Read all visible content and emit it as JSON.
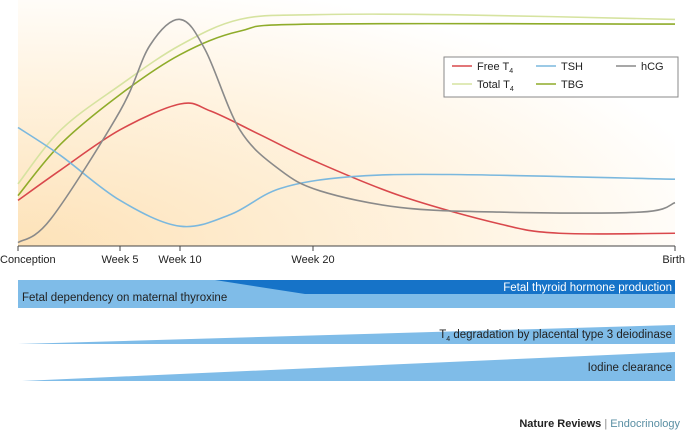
{
  "chart_data": {
    "type": "line",
    "xlabel": "",
    "ylabel": "",
    "x_ticks": [
      {
        "label": "Conception",
        "week": 0
      },
      {
        "label": "Week 5",
        "week": 5
      },
      {
        "label": "Week 10",
        "week": 10
      },
      {
        "label": "Week 20",
        "week": 20
      },
      {
        "label": "Birth",
        "week": 40
      }
    ],
    "y_scale": "relative level 0-100 (no axis printed)",
    "legend_position": "top-right",
    "series": [
      {
        "name": "Total T",
        "sub": "4",
        "color": "#d6e3a0",
        "points": [
          [
            0,
            26
          ],
          [
            2.1,
            49
          ],
          [
            5,
            68
          ],
          [
            10,
            85
          ],
          [
            14.5,
            96
          ],
          [
            20,
            98
          ],
          [
            27.6,
            98
          ],
          [
            40,
            96
          ]
        ]
      },
      {
        "name": "TBG",
        "color": "#8fac2a",
        "points": [
          [
            0,
            21
          ],
          [
            2.1,
            43
          ],
          [
            5,
            64
          ],
          [
            10,
            81
          ],
          [
            14.5,
            91
          ],
          [
            20,
            94
          ],
          [
            40,
            94
          ]
        ]
      },
      {
        "name": "Free T",
        "sub": "4",
        "color": "#d9484c",
        "points": [
          [
            0,
            19
          ],
          [
            2.1,
            32
          ],
          [
            5,
            49
          ],
          [
            10,
            60
          ],
          [
            12.3,
            57
          ],
          [
            16,
            47
          ],
          [
            20,
            36
          ],
          [
            24.8,
            21
          ],
          [
            30.3,
            9
          ],
          [
            33.6,
            5
          ],
          [
            40,
            5
          ]
        ]
      },
      {
        "name": "TSH",
        "color": "#7bb8de",
        "points": [
          [
            0,
            50
          ],
          [
            2.1,
            38
          ],
          [
            5,
            19
          ],
          [
            10,
            8
          ],
          [
            13.8,
            13
          ],
          [
            17.5,
            24
          ],
          [
            22,
            29
          ],
          [
            27.6,
            30
          ],
          [
            40,
            28
          ]
        ]
      },
      {
        "name": "hCG",
        "color": "#8a8a8a",
        "points": [
          [
            0,
            1
          ],
          [
            1.6,
            11
          ],
          [
            5,
            57
          ],
          [
            7.5,
            85
          ],
          [
            10,
            96
          ],
          [
            11.9,
            83
          ],
          [
            14.5,
            49
          ],
          [
            17.5,
            32
          ],
          [
            20.4,
            23
          ],
          [
            24.8,
            16
          ],
          [
            30.3,
            14
          ],
          [
            38.1,
            14
          ],
          [
            40,
            18
          ]
        ]
      }
    ]
  },
  "bars": {
    "maternal": "Fetal dependency on maternal thyroxine",
    "fetal": "Fetal thyroid hormone production",
    "deiodinase_sub": "4",
    "deiodinase_prefix": "T",
    "deiodinase": " degradation by placental type 3 deiodinase",
    "iodine": "Iodine clearance",
    "light_color": "#7fbce8",
    "dark_color": "#1673c8"
  },
  "footer": {
    "journal": "Nature Reviews",
    "sep": " | ",
    "section": "Endocrinology"
  }
}
